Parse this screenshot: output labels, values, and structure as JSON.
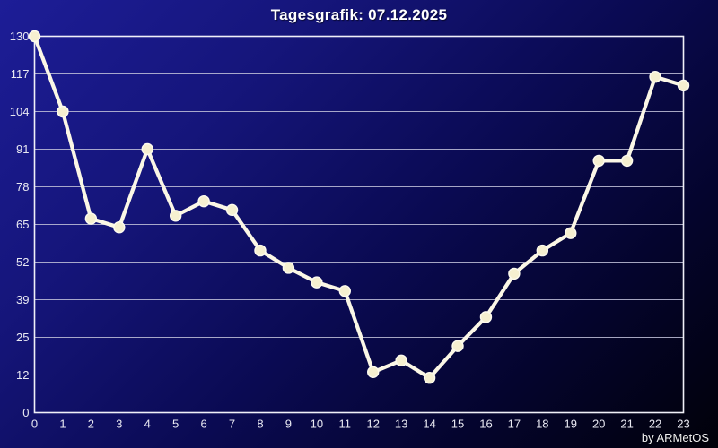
{
  "window": {
    "title": "Tagesgrafik: 07.12.2025",
    "credit": "by ARMetOS"
  },
  "chart_data": {
    "type": "line",
    "title": "Tagesgrafik: 07.12.2025",
    "x": [
      0,
      1,
      2,
      3,
      4,
      5,
      6,
      7,
      8,
      9,
      10,
      11,
      12,
      13,
      14,
      15,
      16,
      17,
      18,
      19,
      20,
      21,
      22,
      23
    ],
    "values": [
      130,
      104,
      67,
      64,
      91,
      68,
      73,
      70,
      56,
      50,
      45,
      42,
      14,
      18,
      12,
      23,
      33,
      48,
      56,
      62,
      87,
      87,
      116,
      113
    ],
    "x_tick_labels": [
      "0",
      "1",
      "2",
      "3",
      "4",
      "5",
      "6",
      "7",
      "8",
      "9",
      "10",
      "11",
      "12",
      "13",
      "14",
      "15",
      "16",
      "17",
      "18",
      "19",
      "20",
      "21",
      "22",
      "23"
    ],
    "y_tick_labels_top_to_bottom": [
      "130",
      "117",
      "104",
      "91",
      "78",
      "65",
      "52",
      "39",
      "25",
      "12",
      "0"
    ],
    "ylim": [
      0,
      130
    ],
    "xlabel": "",
    "ylabel": "",
    "grid": true,
    "legend": "none",
    "colors": {
      "line": "#fbf7e6",
      "marker_fill": "#f6f0d0",
      "marker_edge": "#fdfbef",
      "gridline": "#c2c2da",
      "plot_border": "#f0f0f8",
      "bg_top_left": "#1d1d97",
      "bg_mid": "#0a0a52",
      "bg_bottom_right": "#010109",
      "text": "#ffffff"
    }
  }
}
